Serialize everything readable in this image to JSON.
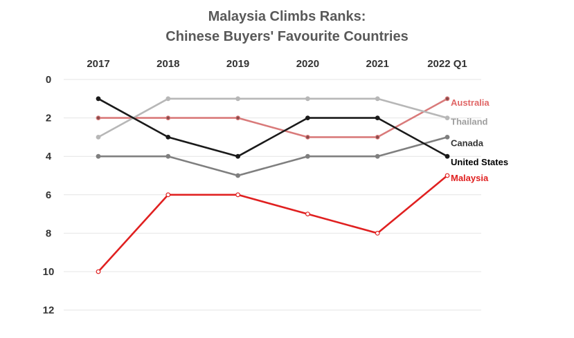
{
  "chart_data": {
    "type": "line",
    "title_lines": [
      "Malaysia Climbs Ranks:",
      "Chinese Buyers' Favourite Countries"
    ],
    "categories": [
      "2017",
      "2018",
      "2019",
      "2020",
      "2021",
      "2022 Q1"
    ],
    "x_axis_position": "top",
    "y_reversed": true,
    "ylim": [
      0,
      12
    ],
    "yticks": [
      "0",
      "2",
      "4",
      "6",
      "8",
      "10",
      "12"
    ],
    "grid": "horizontal",
    "xlabel": "",
    "ylabel": "",
    "series": [
      {
        "name": "Australia",
        "values": [
          2,
          2,
          2,
          3,
          3,
          1
        ],
        "color": "#d97a7a",
        "marker": "#8a4a4a",
        "label_color": "#e06666"
      },
      {
        "name": "Thailand",
        "values": [
          3,
          1,
          1,
          1,
          1,
          2
        ],
        "color": "#b7b7b7",
        "marker": "#b7b7b7",
        "label_color": "#9e9e9e"
      },
      {
        "name": "Canada",
        "values": [
          4,
          4,
          5,
          4,
          4,
          3
        ],
        "color": "#7f7f7f",
        "marker": "#7f7f7f",
        "label_color": "#333333"
      },
      {
        "name": "United States",
        "values": [
          1,
          3,
          4,
          2,
          2,
          4
        ],
        "color": "#1a1a1a",
        "marker": "#1a1a1a",
        "label_color": "#000000"
      },
      {
        "name": "Malaysia",
        "values": [
          10,
          6,
          6,
          7,
          8,
          5
        ],
        "color": "#e02020",
        "marker": "#ffffff",
        "label_color": "#e02020"
      }
    ]
  }
}
